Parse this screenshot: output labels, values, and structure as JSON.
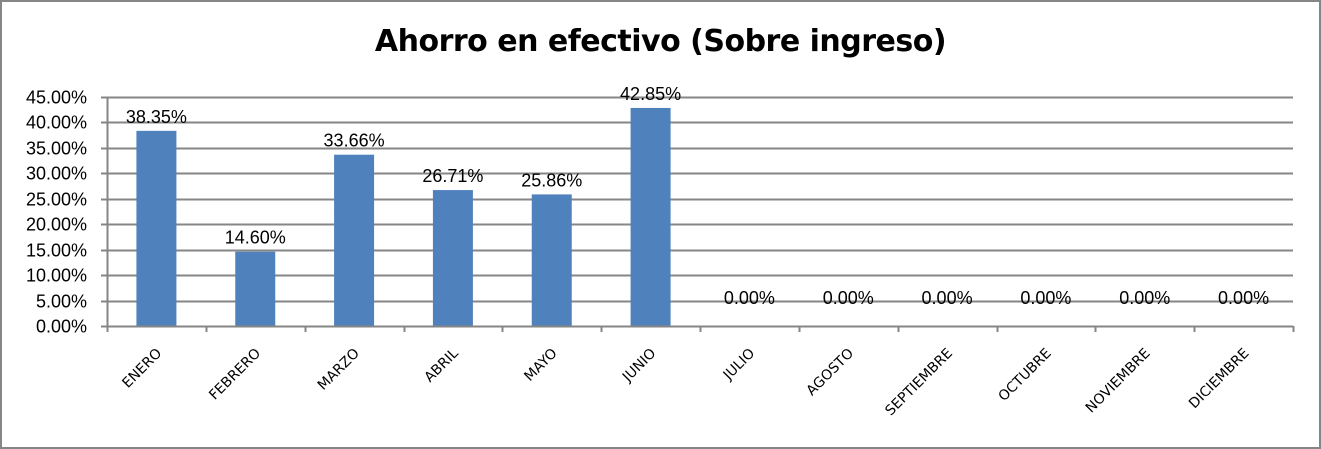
{
  "chart_data": {
    "type": "bar",
    "title": "Ahorro en efectivo (Sobre ingreso)",
    "xlabel": "",
    "ylabel": "",
    "categories": [
      "ENERO",
      "FEBRERO",
      "MARZO",
      "ABRIL",
      "MAYO",
      "JUNIO",
      "JULIO",
      "AGOSTO",
      "SEPTIEMBRE",
      "OCTUBRE",
      "NOVIEMBRE",
      "DICIEMBRE"
    ],
    "values": [
      38.35,
      14.6,
      33.66,
      26.71,
      25.86,
      42.85,
      0.0,
      0.0,
      0.0,
      0.0,
      0.0,
      0.0
    ],
    "data_labels": [
      "38.35%",
      "14.60%",
      "33.66%",
      "26.71%",
      "25.86%",
      "42.85%",
      "0.00%",
      "0.00%",
      "0.00%",
      "0.00%",
      "0.00%",
      "0.00%"
    ],
    "ylim": [
      0,
      45
    ],
    "y_ticks": [
      "0.00%",
      "5.00%",
      "10.00%",
      "15.00%",
      "20.00%",
      "25.00%",
      "30.00%",
      "35.00%",
      "40.00%",
      "45.00%"
    ],
    "grid": true,
    "legend": "none",
    "bar_color": "#4F81BD",
    "gridline_color": "#868686"
  }
}
